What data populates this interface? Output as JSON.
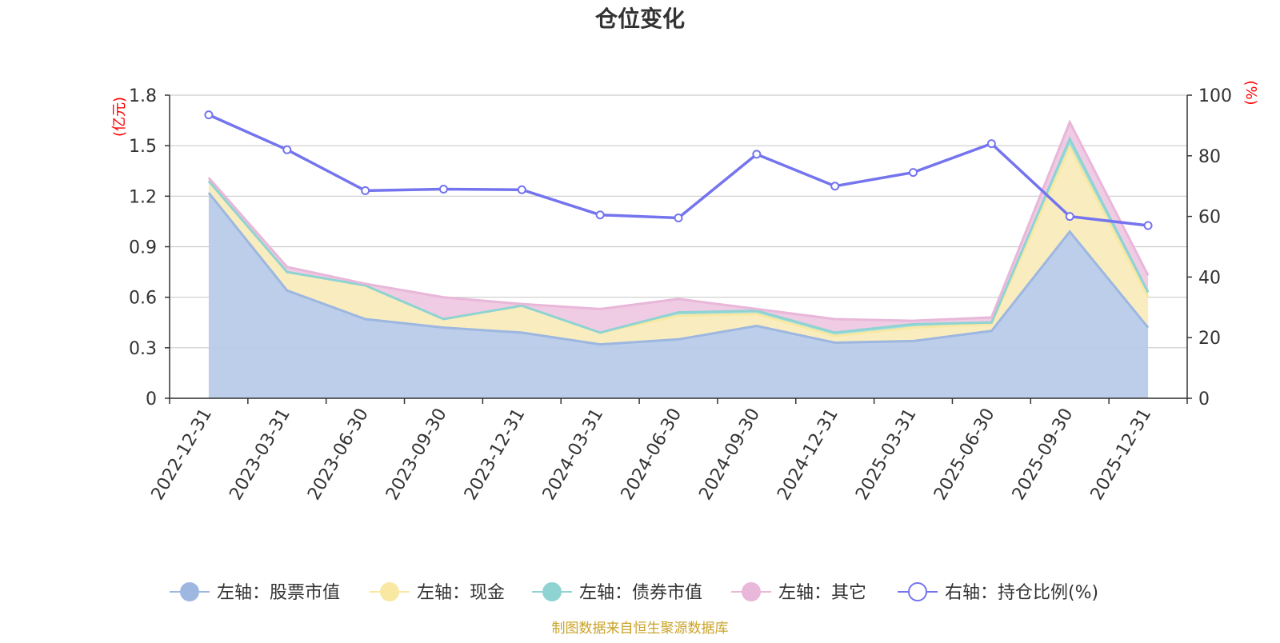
{
  "chart_data": {
    "type": "area",
    "title": "仓位变化",
    "categories": [
      "2022-12-31",
      "2023-03-31",
      "2023-06-30",
      "2023-09-30",
      "2023-12-31",
      "2024-03-31",
      "2024-06-30",
      "2024-09-30",
      "2024-12-31",
      "2025-03-31",
      "2025-06-30",
      "2025-09-30",
      "2025-12-31"
    ],
    "left_axis": {
      "unit": "(亿元)",
      "ylim": [
        0,
        1.8
      ],
      "ticks": [
        "0",
        "0.3",
        "0.6",
        "0.9",
        "1.2",
        "1.5",
        "1.8"
      ]
    },
    "right_axis": {
      "unit": "(%)",
      "ylim": [
        0,
        100
      ],
      "ticks": [
        "0",
        "20",
        "40",
        "60",
        "80",
        "100"
      ]
    },
    "stacked_series": [
      {
        "name": "左轴：股票市值",
        "color": "#9db7e0",
        "fill": "#b8cbe9",
        "values": [
          1.22,
          0.64,
          0.47,
          0.42,
          0.39,
          0.32,
          0.35,
          0.43,
          0.33,
          0.34,
          0.4,
          0.99,
          0.42
        ]
      },
      {
        "name": "左轴：现金",
        "color": "#f8e8a2",
        "fill": "#f9ecbd",
        "values": [
          0.07,
          0.11,
          0.2,
          0.05,
          0.16,
          0.07,
          0.14,
          0.07,
          0.04,
          0.08,
          0.04,
          0.5,
          0.18
        ]
      },
      {
        "name": "左轴：债券市值",
        "color": "#8fd3d3",
        "fill": "#a4dcdc",
        "values": [
          0,
          0,
          0,
          0,
          0,
          0,
          0.02,
          0.02,
          0.02,
          0.02,
          0.01,
          0.05,
          0.03
        ]
      },
      {
        "name": "左轴：其它",
        "color": "#e8b7d9",
        "fill": "#efc8e3",
        "values": [
          0.02,
          0.03,
          0.01,
          0.13,
          0.01,
          0.14,
          0.08,
          0.01,
          0.08,
          0.02,
          0.03,
          0.1,
          0.1
        ]
      }
    ],
    "line_series": {
      "name": "右轴：持仓比例(%)",
      "color": "#7474ee",
      "values": [
        93.5,
        82.0,
        68.5,
        69.0,
        68.8,
        60.5,
        59.5,
        80.5,
        70.0,
        74.5,
        84.0,
        60.0,
        57.0
      ]
    },
    "source": "制图数据来自恒生聚源数据库"
  }
}
